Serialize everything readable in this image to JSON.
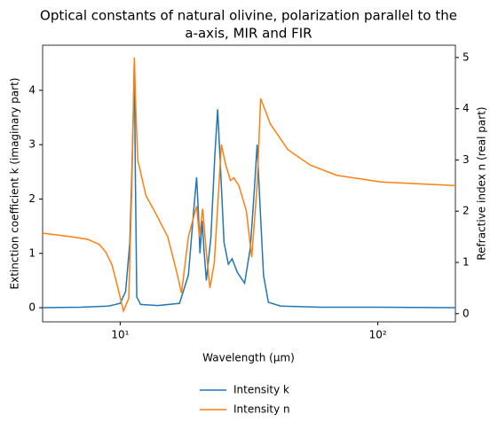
{
  "chart_data": {
    "type": "line",
    "title": [
      "Optical constants of natural olivine, polarization parallel to the",
      "a-axis, MIR and FIR"
    ],
    "xlabel": "Wavelength (μm)",
    "ylabel": "Extinction coefficient k (imaginary part)",
    "y2label": "Refractive index n (real part)",
    "xscale": "log",
    "xlim": [
      5,
      200
    ],
    "xticks": [
      {
        "value": 10,
        "label": "10¹"
      },
      {
        "value": 100,
        "label": "10²"
      }
    ],
    "ylim": [
      -0.26,
      4.83
    ],
    "yticks": [
      0,
      1,
      2,
      3,
      4
    ],
    "y2lim": [
      -0.16,
      5.24
    ],
    "y2ticks": [
      0,
      1,
      2,
      3,
      4,
      5
    ],
    "legend": "bottom",
    "series": [
      {
        "name": "Intensity k",
        "color": "#1f77b4",
        "axis": "y",
        "x": [
          5,
          7,
          9,
          10,
          10.5,
          10.9,
          11.1,
          11.25,
          11.35,
          11.45,
          11.6,
          12,
          14,
          17,
          18.4,
          19.3,
          19.8,
          20.1,
          20.4,
          20.8,
          21.2,
          21.6,
          22.5,
          23.3,
          23.9,
          24.5,
          25.3,
          26.3,
          27.2,
          28.5,
          30.4,
          32,
          33.2,
          34,
          34.8,
          36,
          37.6,
          42,
          60,
          100,
          200
        ],
        "values": [
          0.0,
          0.01,
          0.03,
          0.08,
          0.3,
          1.2,
          2.5,
          3.6,
          4.55,
          2.5,
          0.2,
          0.06,
          0.04,
          0.08,
          0.6,
          1.8,
          2.4,
          1.8,
          1.0,
          1.6,
          1.0,
          0.5,
          1.3,
          2.8,
          3.65,
          2.6,
          1.2,
          0.8,
          0.9,
          0.65,
          0.45,
          1.1,
          2.2,
          3.0,
          2.0,
          0.6,
          0.1,
          0.03,
          0.01,
          0.01,
          0.0
        ]
      },
      {
        "name": "Intensity n",
        "color": "#ff7f0e",
        "axis": "y2",
        "x": [
          5,
          6.5,
          7.5,
          8.3,
          8.8,
          9.3,
          9.8,
          10.3,
          10.8,
          11.1,
          11.35,
          11.5,
          11.7,
          12.6,
          13.6,
          15.3,
          16.6,
          17.3,
          18.4,
          19.8,
          20.3,
          20.9,
          21.6,
          22.3,
          23.2,
          24.7,
          25.7,
          26.8,
          27.6,
          28.9,
          30.9,
          32.4,
          34,
          35.1,
          38.3,
          44.8,
          54.7,
          69.3,
          103,
          200
        ],
        "values": [
          1.57,
          1.5,
          1.45,
          1.35,
          1.2,
          0.95,
          0.5,
          0.05,
          0.3,
          2.5,
          5.0,
          4.0,
          3.0,
          2.3,
          2.0,
          1.5,
          0.8,
          0.4,
          1.5,
          2.1,
          1.5,
          2.05,
          1.2,
          0.5,
          1.0,
          3.3,
          2.9,
          2.6,
          2.65,
          2.5,
          2.0,
          1.1,
          2.5,
          4.2,
          3.7,
          3.2,
          2.9,
          2.7,
          2.57,
          2.5
        ]
      }
    ]
  }
}
